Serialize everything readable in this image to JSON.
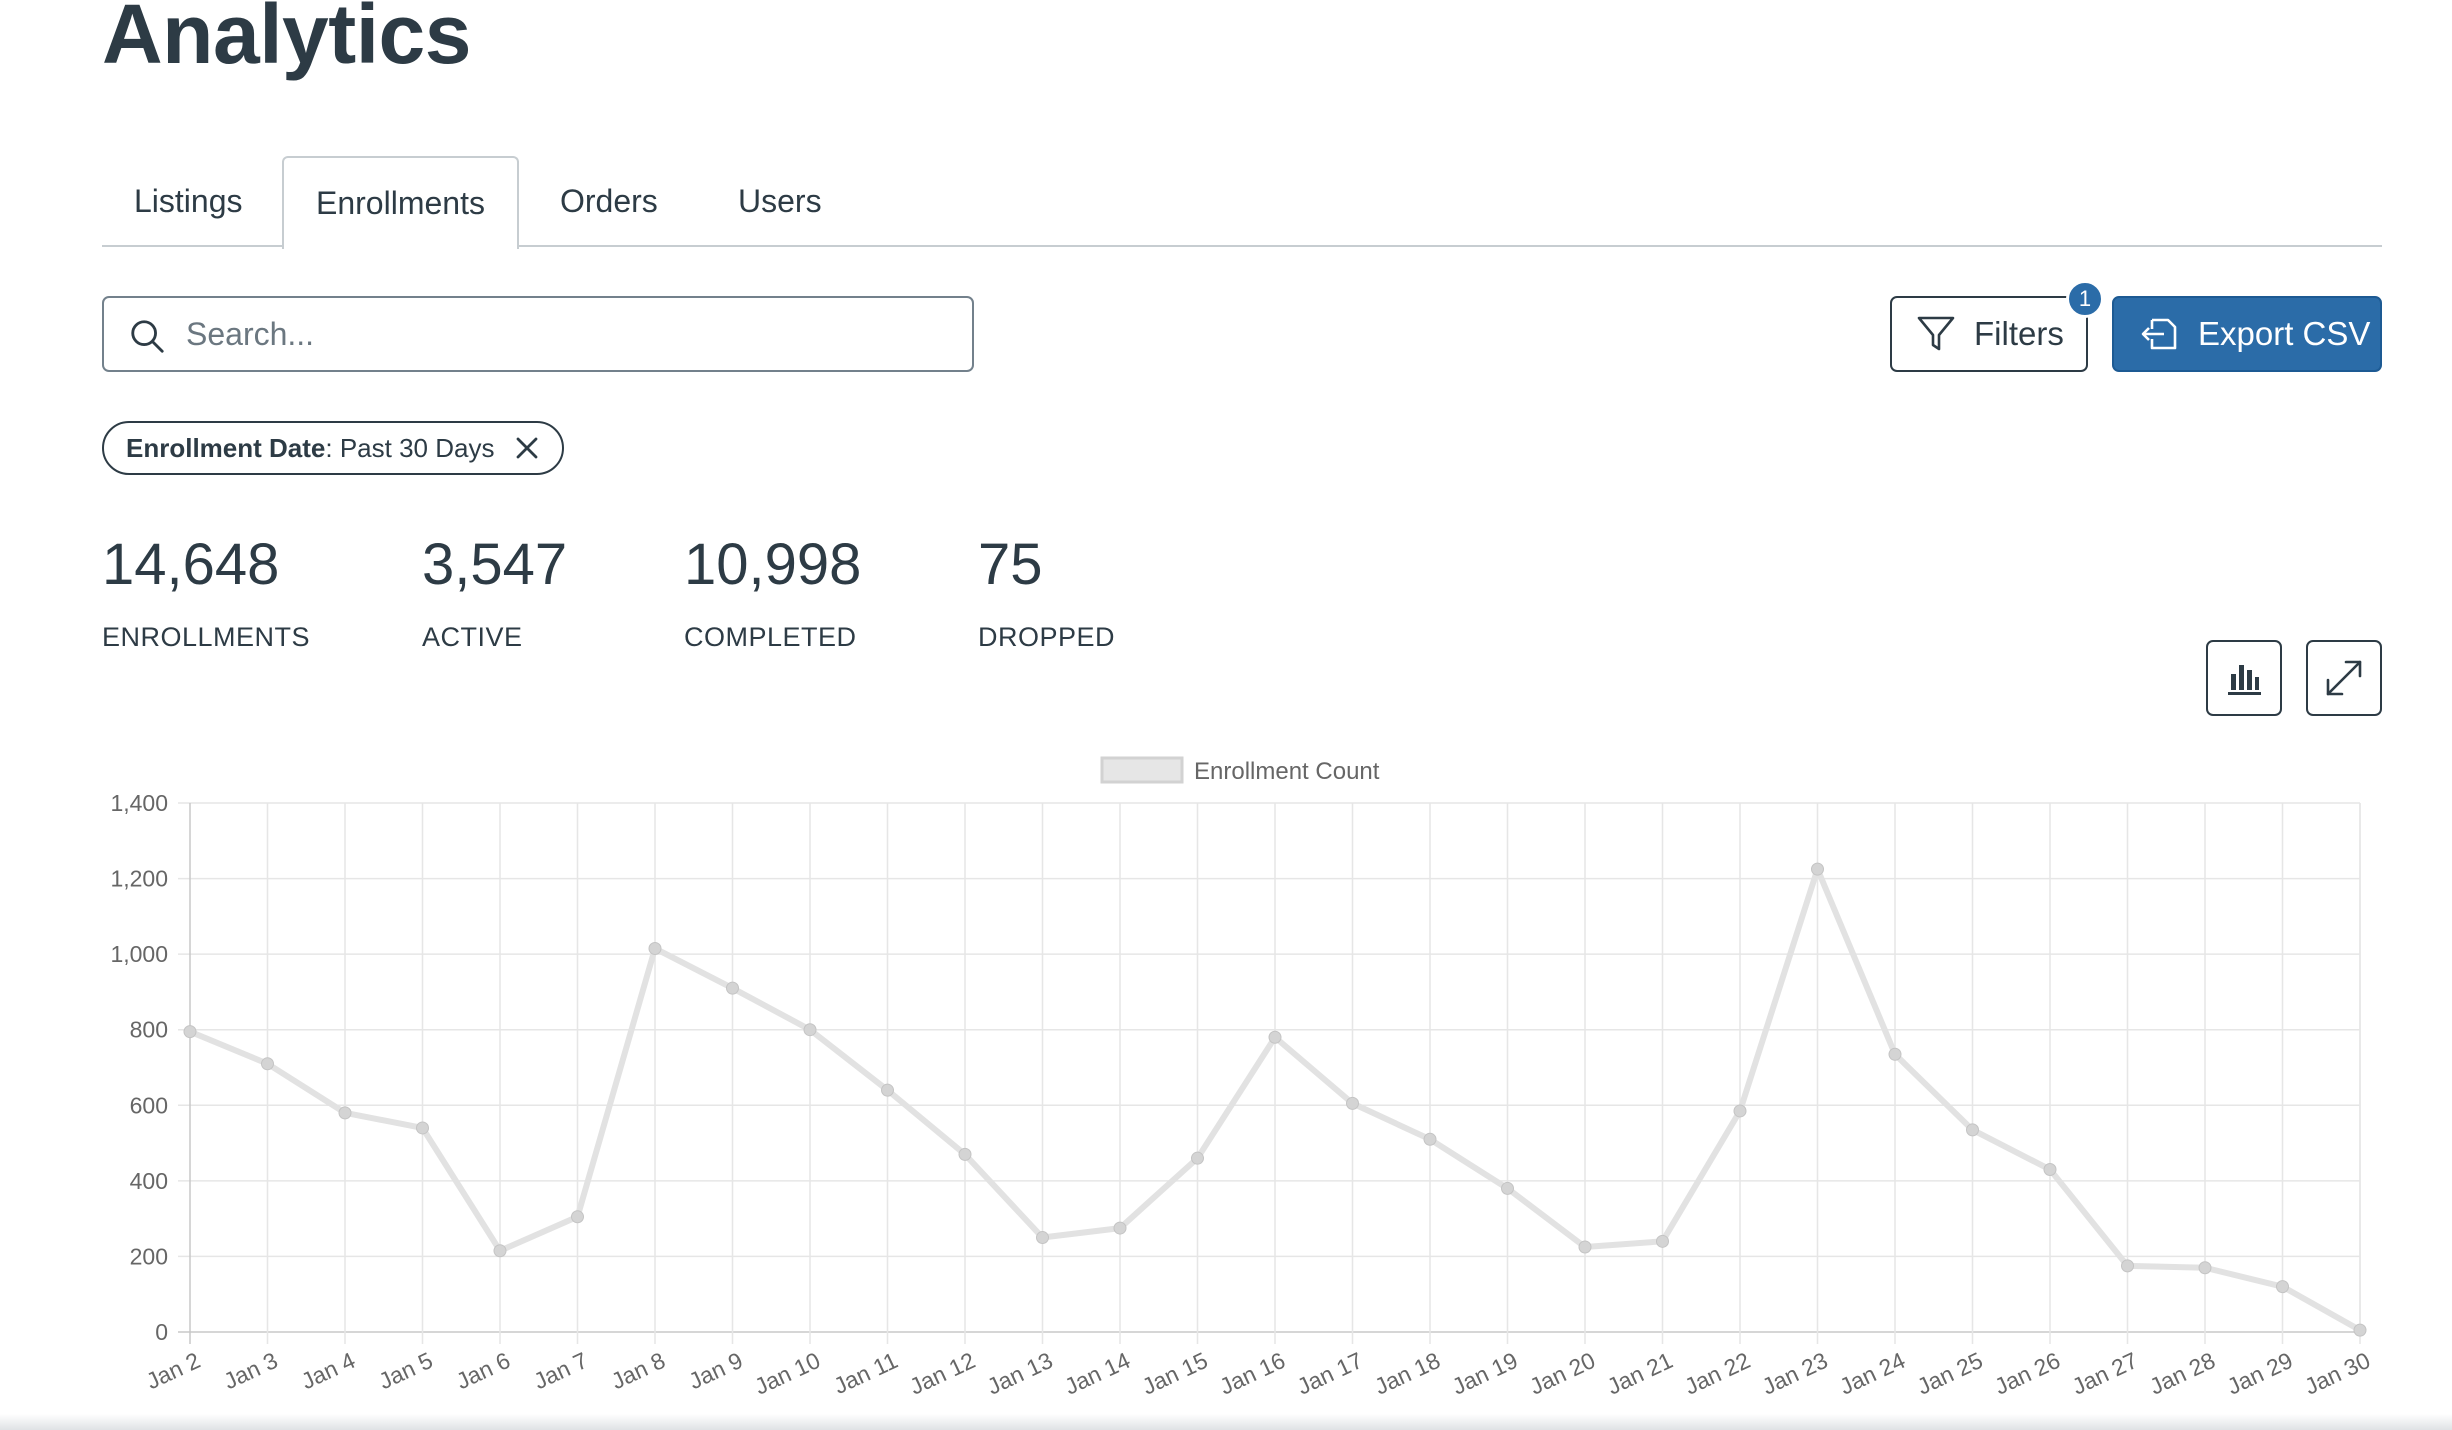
{
  "page": {
    "title": "Analytics"
  },
  "tabs": [
    {
      "label": "Listings",
      "active": false
    },
    {
      "label": "Enrollments",
      "active": true
    },
    {
      "label": "Orders",
      "active": false
    },
    {
      "label": "Users",
      "active": false
    }
  ],
  "toolbar": {
    "search_placeholder": "Search...",
    "search_value": "",
    "filters_label": "Filters",
    "filters_count": "1",
    "export_label": "Export CSV",
    "accent_color": "#2b6ca8"
  },
  "active_filter": {
    "key": "Enrollment Date",
    "value": "Past 30 Days"
  },
  "stats": [
    {
      "value": "14,648",
      "label": "ENROLLMENTS"
    },
    {
      "value": "3,547",
      "label": "ACTIVE"
    },
    {
      "value": "10,998",
      "label": "COMPLETED"
    },
    {
      "value": "75",
      "label": "DROPPED"
    }
  ],
  "chart_controls": {
    "chart_type_icon": "bar-chart-icon",
    "expand_icon": "expand-icon"
  },
  "chart_data": {
    "type": "line",
    "categories": [
      "Jan 2",
      "Jan 3",
      "Jan 4",
      "Jan 5",
      "Jan 6",
      "Jan 7",
      "Jan 8",
      "Jan 9",
      "Jan 10",
      "Jan 11",
      "Jan 12",
      "Jan 13",
      "Jan 14",
      "Jan 15",
      "Jan 16",
      "Jan 17",
      "Jan 18",
      "Jan 19",
      "Jan 20",
      "Jan 21",
      "Jan 22",
      "Jan 23",
      "Jan 24",
      "Jan 25",
      "Jan 26",
      "Jan 27",
      "Jan 28",
      "Jan 29",
      "Jan 30"
    ],
    "series": [
      {
        "name": "Enrollment Count",
        "color": "#e2e2e2",
        "values": [
          795,
          710,
          580,
          540,
          215,
          305,
          1015,
          910,
          800,
          640,
          470,
          250,
          275,
          460,
          780,
          605,
          510,
          380,
          225,
          240,
          585,
          1225,
          735,
          535,
          430,
          175,
          170,
          120,
          5
        ]
      }
    ],
    "ylim": [
      0,
      1400
    ],
    "yticks": [
      "0",
      "200",
      "400",
      "600",
      "800",
      "1,000",
      "1,200",
      "1,400"
    ],
    "grid": true,
    "legend_position": "top-center"
  }
}
